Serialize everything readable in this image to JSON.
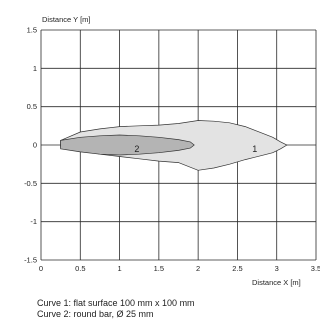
{
  "chart_data": {
    "type": "area",
    "xlabel": "Distance X [m]",
    "ylabel": "Distance Y [m]",
    "xlim": [
      0,
      3.5
    ],
    "ylim": [
      -1.5,
      1.5
    ],
    "xticks": [
      "0",
      "0.5",
      "1",
      "1.5",
      "2",
      "2.5",
      "3",
      "3.5"
    ],
    "yticks": [
      "1.5",
      "1",
      "0.5",
      "0",
      "-0.5",
      "-1",
      "-1.5"
    ],
    "grid": true,
    "legend": "below",
    "series": [
      {
        "name": "1",
        "color": "#e3e3e3",
        "label_at": [
          2.72,
          -0.05
        ],
        "points": [
          [
            0.25,
            0.06
          ],
          [
            0.5,
            0.17
          ],
          [
            0.75,
            0.21
          ],
          [
            1.0,
            0.24
          ],
          [
            1.25,
            0.25
          ],
          [
            1.5,
            0.26
          ],
          [
            1.75,
            0.28
          ],
          [
            2.0,
            0.32
          ],
          [
            2.2,
            0.31
          ],
          [
            2.4,
            0.29
          ],
          [
            2.6,
            0.24
          ],
          [
            2.8,
            0.16
          ],
          [
            2.95,
            0.1
          ],
          [
            3.05,
            0.04
          ],
          [
            3.13,
            0.0
          ],
          [
            3.05,
            -0.05
          ],
          [
            2.95,
            -0.1
          ],
          [
            2.8,
            -0.14
          ],
          [
            2.6,
            -0.19
          ],
          [
            2.4,
            -0.25
          ],
          [
            2.2,
            -0.3
          ],
          [
            2.0,
            -0.33
          ],
          [
            1.75,
            -0.23
          ],
          [
            1.5,
            -0.21
          ],
          [
            1.25,
            -0.18
          ],
          [
            1.0,
            -0.15
          ],
          [
            0.75,
            -0.12
          ],
          [
            0.5,
            -0.06
          ],
          [
            0.25,
            -0.03
          ]
        ]
      },
      {
        "name": "2",
        "color": "#b4b4b4",
        "label_at": [
          1.22,
          -0.05
        ],
        "points": [
          [
            0.25,
            0.06
          ],
          [
            0.5,
            0.1
          ],
          [
            0.75,
            0.12
          ],
          [
            1.0,
            0.13
          ],
          [
            1.25,
            0.12
          ],
          [
            1.5,
            0.1
          ],
          [
            1.75,
            0.07
          ],
          [
            1.9,
            0.04
          ],
          [
            1.95,
            0.0
          ],
          [
            1.9,
            -0.04
          ],
          [
            1.75,
            -0.07
          ],
          [
            1.5,
            -0.1
          ],
          [
            1.25,
            -0.12
          ],
          [
            1.0,
            -0.13
          ],
          [
            0.75,
            -0.12
          ],
          [
            0.5,
            -0.09
          ],
          [
            0.25,
            -0.05
          ]
        ]
      }
    ]
  },
  "captions": {
    "curve1": "Curve 1: flat surface 100 mm x 100 mm",
    "curve2": "Curve 2: round bar, Ø 25 mm"
  }
}
